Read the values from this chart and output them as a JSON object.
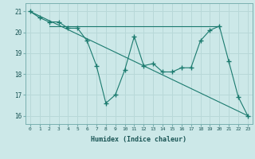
{
  "x_data": [
    0,
    1,
    2,
    3,
    4,
    5,
    6,
    7,
    8,
    9,
    10,
    11,
    12,
    13,
    14,
    15,
    16,
    17,
    18,
    19,
    20,
    21,
    22,
    23
  ],
  "y_zigzag": [
    21.0,
    20.7,
    20.5,
    20.5,
    20.2,
    20.2,
    19.6,
    18.4,
    16.6,
    17.0,
    18.2,
    19.8,
    18.4,
    18.5,
    18.1,
    18.1,
    18.3,
    18.3,
    19.6,
    20.1,
    20.3,
    18.6,
    16.9,
    16.0
  ],
  "x_horizontal_start": 2,
  "x_horizontal_end": 20,
  "y_horizontal": 20.3,
  "y_diagonal_start": 21.0,
  "y_diagonal_end": 16.0,
  "x_diagonal_start": 0,
  "x_diagonal_end": 23,
  "line_color": "#1a7a6e",
  "bg_color": "#cce8e8",
  "grid_color": "#b8d8d8",
  "xlabel": "Humidex (Indice chaleur)",
  "ylim_min": 15.6,
  "ylim_max": 21.4,
  "xlim_min": -0.5,
  "xlim_max": 23.5,
  "yticks": [
    16,
    17,
    18,
    19,
    20,
    21
  ]
}
